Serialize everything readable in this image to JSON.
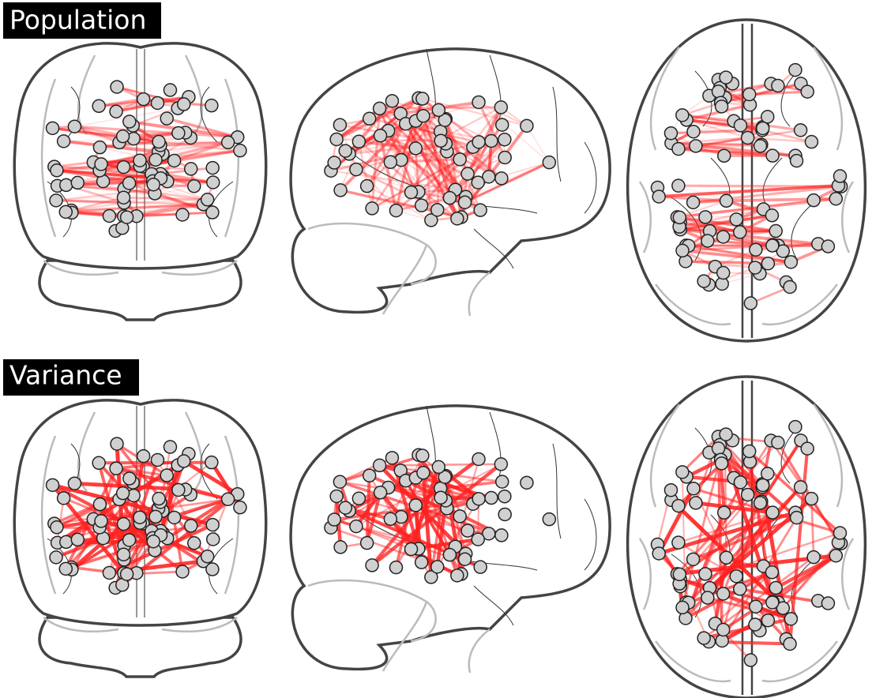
{
  "panels": [
    {
      "label": "Population"
    },
    {
      "label": "Variance"
    }
  ]
}
